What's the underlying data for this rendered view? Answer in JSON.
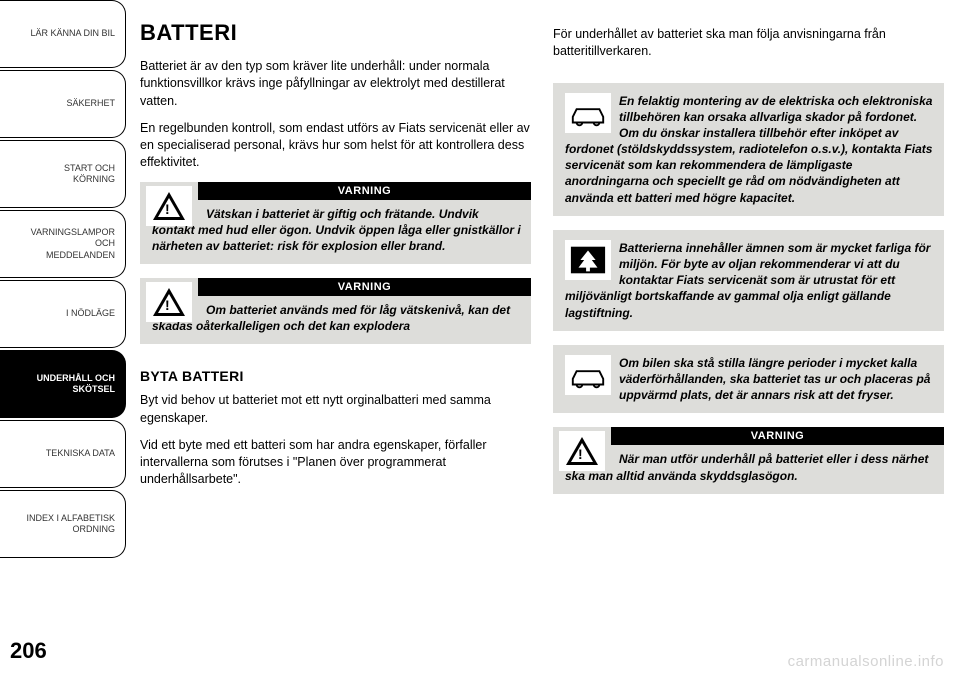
{
  "sidebar": {
    "tabs": [
      {
        "label": "LÄR KÄNNA DIN BIL",
        "active": false
      },
      {
        "label": "SÄKERHET",
        "active": false
      },
      {
        "label": "START OCH\nKÖRNING",
        "active": false
      },
      {
        "label": "VARNINGSLAMPOR\nOCH\nMEDDELANDEN",
        "active": false
      },
      {
        "label": "I NÖDLÄGE",
        "active": false
      },
      {
        "label": "UNDERHÅLL OCH\nSKÖTSEL",
        "active": true
      },
      {
        "label": "TEKNISKA DATA",
        "active": false
      },
      {
        "label": "INDEX I ALFABETISK\nORDNING",
        "active": false
      }
    ]
  },
  "page_number": "206",
  "left_col": {
    "heading": "BATTERI",
    "p1": "Batteriet är av den typ som kräver lite underhåll: under normala funktionsvillkor krävs inge påfyllningar av elektrolyt med destillerat vatten.",
    "p2": "En regelbunden kontroll, som endast utförs av Fiats servicenät eller av en specialiserad personal, krävs hur som helst för att kontrollera dess effektivitet.",
    "warn1": {
      "header": "VARNING",
      "body": "Vätskan i batteriet är giftig och frätande. Undvik kontakt med hud eller ögon. Undvik öppen låga eller gnistkällor i närheten av batteriet: risk för explosion eller brand."
    },
    "warn2": {
      "header": "VARNING",
      "body": "Om batteriet används med för låg vätskenivå, kan det skadas oåterkalleligen och det kan explodera"
    },
    "subheading": "BYTA BATTERI",
    "p3": "Byt vid behov ut batteriet mot ett nytt orginalbatteri med samma egenskaper.",
    "p4": "Vid ett byte med ett batteri som har andra egenskaper, förfaller intervallerna som förutses i \"Planen över programmerat underhållsarbete\"."
  },
  "right_col": {
    "p1": "För underhållet av batteriet ska man följa anvisningarna från batteritillverkaren.",
    "info1": {
      "body": "En felaktig montering av de elektriska och elektroniska tillbehören kan orsaka allvarliga skador på fordonet. Om du önskar installera tillbehör efter inköpet av fordonet (stöldskyddssystem, radiotelefon o.s.v.), kontakta Fiats servicenät som kan rekommendera de lämpligaste anordningarna och speciellt ge råd om nödvändigheten att använda ett batteri med högre kapacitet."
    },
    "info2": {
      "body": "Batterierna innehåller ämnen som är mycket farliga för miljön. För byte av oljan rekommenderar vi att du kontaktar Fiats servicenät som är utrustat för ett miljövänligt bortskaffande av gammal olja enligt gällande lagstiftning."
    },
    "info3": {
      "body": "Om bilen ska stå stilla längre perioder i mycket kalla väderförhållanden, ska batteriet tas ur och placeras på uppvärmd plats, det är annars risk att det fryser."
    },
    "warn3": {
      "header": "VARNING",
      "body": "När man utför underhåll på batteriet eller i dess närhet ska man alltid använda skyddsglasögon."
    }
  },
  "watermark": "carmanualsonline.info",
  "colors": {
    "box_bg": "#ddddda",
    "text": "#000000",
    "bg": "#ffffff",
    "watermark": "#d4d4d4"
  }
}
